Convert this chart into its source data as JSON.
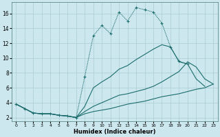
{
  "xlabel": "Humidex (Indice chaleur)",
  "background_color": "#cce8ee",
  "grid_color": "#aaccd4",
  "line_color": "#1a6b6b",
  "xlim": [
    -0.5,
    23.5
  ],
  "ylim": [
    1.5,
    17.5
  ],
  "xticks": [
    0,
    1,
    2,
    3,
    4,
    5,
    6,
    7,
    8,
    9,
    10,
    11,
    12,
    13,
    14,
    15,
    16,
    17,
    18,
    19,
    20,
    21,
    22,
    23
  ],
  "yticks": [
    2,
    4,
    6,
    8,
    10,
    12,
    14,
    16
  ],
  "series": [
    {
      "x": [
        0,
        1,
        2,
        3,
        4,
        5,
        6,
        7,
        8,
        9,
        10,
        11,
        12,
        13,
        14,
        15,
        16,
        17,
        18,
        19,
        20
      ],
      "y": [
        3.8,
        3.2,
        2.6,
        2.5,
        2.5,
        2.3,
        2.2,
        2.0,
        7.5,
        13.0,
        14.4,
        13.3,
        16.2,
        15.0,
        16.8,
        16.5,
        16.2,
        14.7,
        11.5,
        9.6,
        9.2
      ],
      "linestyle": "dotted",
      "marker": "+"
    },
    {
      "x": [
        0,
        1,
        2,
        3,
        4,
        5,
        6,
        7,
        8,
        9,
        10,
        11,
        12,
        13,
        14,
        15,
        16,
        17,
        18,
        19,
        20,
        21,
        22
      ],
      "y": [
        3.8,
        3.2,
        2.6,
        2.5,
        2.5,
        2.3,
        2.2,
        2.0,
        3.5,
        6.0,
        6.8,
        7.5,
        8.5,
        9.0,
        9.8,
        10.5,
        11.2,
        11.8,
        11.5,
        9.5,
        9.2,
        7.2,
        6.2
      ],
      "linestyle": "solid",
      "marker": null
    },
    {
      "x": [
        0,
        1,
        2,
        3,
        4,
        5,
        6,
        7,
        8,
        9,
        10,
        11,
        12,
        13,
        14,
        15,
        16,
        17,
        18,
        19,
        20,
        21,
        22,
        23
      ],
      "y": [
        3.8,
        3.2,
        2.6,
        2.5,
        2.5,
        2.3,
        2.2,
        2.0,
        2.8,
        3.5,
        4.0,
        4.5,
        5.0,
        5.2,
        5.5,
        5.8,
        6.2,
        6.8,
        7.5,
        8.2,
        9.5,
        8.8,
        7.2,
        6.5
      ],
      "linestyle": "solid",
      "marker": null
    },
    {
      "x": [
        0,
        1,
        2,
        3,
        4,
        5,
        6,
        7,
        8,
        9,
        10,
        11,
        12,
        13,
        14,
        15,
        16,
        17,
        18,
        19,
        20,
        21,
        22,
        23
      ],
      "y": [
        3.8,
        3.2,
        2.6,
        2.5,
        2.5,
        2.3,
        2.2,
        2.0,
        2.5,
        2.8,
        3.0,
        3.2,
        3.5,
        3.8,
        4.0,
        4.2,
        4.5,
        4.8,
        5.0,
        5.2,
        5.5,
        5.8,
        6.0,
        6.5
      ],
      "linestyle": "solid",
      "marker": null
    }
  ]
}
